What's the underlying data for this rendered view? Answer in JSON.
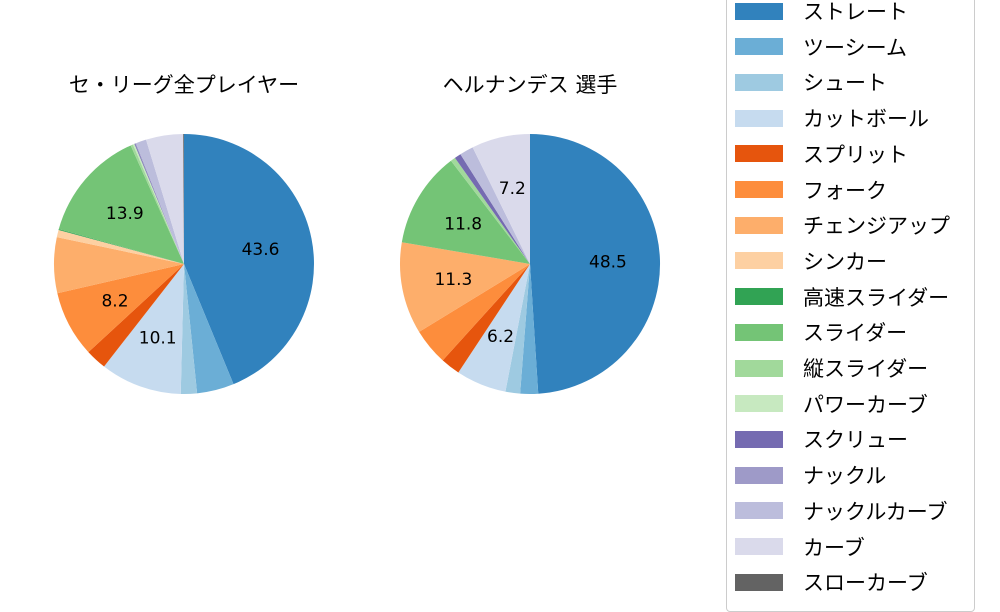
{
  "chart_data": [
    {
      "type": "pie",
      "title": "セ・リーグ全プレイヤー",
      "slices": [
        {
          "name": "ストレート",
          "value": 43.6,
          "label": "43.6"
        },
        {
          "name": "ツーシーム",
          "value": 4.6,
          "label": ""
        },
        {
          "name": "シュート",
          "value": 2.0,
          "label": ""
        },
        {
          "name": "カットボール",
          "value": 10.1,
          "label": "10.1"
        },
        {
          "name": "スプリット",
          "value": 2.6,
          "label": ""
        },
        {
          "name": "フォーク",
          "value": 8.2,
          "label": "8.2"
        },
        {
          "name": "チェンジアップ",
          "value": 6.9,
          "label": ""
        },
        {
          "name": "シンカー",
          "value": 0.9,
          "label": ""
        },
        {
          "name": "高速スライダー",
          "value": 0.1,
          "label": ""
        },
        {
          "name": "スライダー",
          "value": 13.9,
          "label": "13.9"
        },
        {
          "name": "縦スライダー",
          "value": 0.3,
          "label": ""
        },
        {
          "name": "パワーカーブ",
          "value": 0.2,
          "label": ""
        },
        {
          "name": "スクリュー",
          "value": 0.1,
          "label": ""
        },
        {
          "name": "ナックル",
          "value": 0.1,
          "label": ""
        },
        {
          "name": "ナックルカーブ",
          "value": 1.3,
          "label": ""
        },
        {
          "name": "カーブ",
          "value": 4.6,
          "label": ""
        },
        {
          "name": "スローカーブ",
          "value": 0.1,
          "label": ""
        }
      ]
    },
    {
      "type": "pie",
      "title": "ヘルナンデス  選手",
      "slices": [
        {
          "name": "ストレート",
          "value": 48.5,
          "label": "48.5"
        },
        {
          "name": "ツーシーム",
          "value": 2.2,
          "label": ""
        },
        {
          "name": "シュート",
          "value": 1.8,
          "label": ""
        },
        {
          "name": "カットボール",
          "value": 6.2,
          "label": "6.2"
        },
        {
          "name": "スプリット",
          "value": 2.4,
          "label": ""
        },
        {
          "name": "フォーク",
          "value": 4.5,
          "label": ""
        },
        {
          "name": "チェンジアップ",
          "value": 11.3,
          "label": "11.3"
        },
        {
          "name": "スライダー",
          "value": 11.8,
          "label": "11.8"
        },
        {
          "name": "縦スライダー",
          "value": 0.6,
          "label": ""
        },
        {
          "name": "スクリュー",
          "value": 0.8,
          "label": ""
        },
        {
          "name": "ナックルカーブ",
          "value": 1.7,
          "label": ""
        },
        {
          "name": "カーブ",
          "value": 7.2,
          "label": "7.2"
        }
      ]
    }
  ],
  "legend": [
    {
      "name": "ストレート",
      "color": "#3182bd"
    },
    {
      "name": "ツーシーム",
      "color": "#6baed6"
    },
    {
      "name": "シュート",
      "color": "#9ecae1"
    },
    {
      "name": "カットボール",
      "color": "#c6dbef"
    },
    {
      "name": "スプリット",
      "color": "#e6550d"
    },
    {
      "name": "フォーク",
      "color": "#fd8d3c"
    },
    {
      "name": "チェンジアップ",
      "color": "#fdae6b"
    },
    {
      "name": "シンカー",
      "color": "#fdd0a2"
    },
    {
      "name": "高速スライダー",
      "color": "#31a354"
    },
    {
      "name": "スライダー",
      "color": "#74c476"
    },
    {
      "name": "縦スライダー",
      "color": "#a1d99b"
    },
    {
      "name": "パワーカーブ",
      "color": "#c7e9c0"
    },
    {
      "name": "スクリュー",
      "color": "#756bb1"
    },
    {
      "name": "ナックル",
      "color": "#9e9ac8"
    },
    {
      "name": "ナックルカーブ",
      "color": "#bcbddc"
    },
    {
      "name": "カーブ",
      "color": "#dadaeb"
    },
    {
      "name": "スローカーブ",
      "color": "#636363"
    }
  ]
}
